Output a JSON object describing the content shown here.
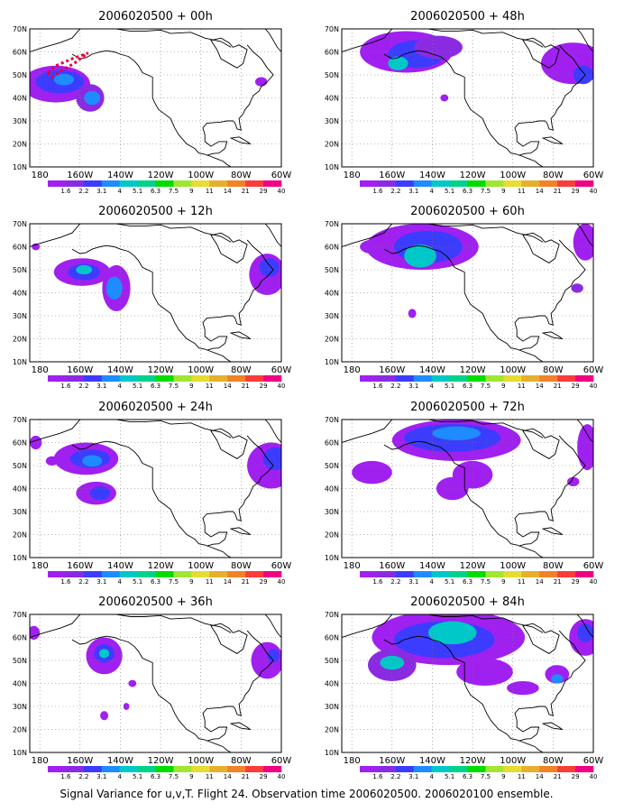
{
  "caption": "Signal Variance for u,v,T. Flight 24. Observation time 2006020500. 2006020100 ensemble.",
  "colorbar": {
    "colors": [
      "#a020f0",
      "#8a2be2",
      "#3c3cff",
      "#1e8cff",
      "#00c8c8",
      "#00d28c",
      "#00dc00",
      "#a0e632",
      "#e6dc32",
      "#e6af2d",
      "#f08228",
      "#fa3c3c",
      "#f00082"
    ],
    "labels": [
      "1.6",
      "2.2",
      "3.1",
      "4",
      "5.1",
      "6.3",
      "7.5",
      "9",
      "11",
      "14",
      "21",
      "29",
      "40"
    ]
  },
  "axes": {
    "xticks": [
      "180",
      "160W",
      "140W",
      "120W",
      "100W",
      "80W",
      "60W"
    ],
    "yticks": [
      "10N",
      "20N",
      "30N",
      "40N",
      "50N",
      "60N",
      "70N"
    ],
    "xlim": [
      175,
      300
    ],
    "ylim": [
      10,
      70
    ],
    "grid": true,
    "grid_style": "dotted"
  },
  "chart_data": [
    {
      "type": "heatmap",
      "title": "2006020500 + 00h"
    },
    {
      "type": "heatmap",
      "title": "2006020500 + 48h"
    },
    {
      "type": "heatmap",
      "title": "2006020500 + 12h"
    },
    {
      "type": "heatmap",
      "title": "2006020500 + 60h"
    },
    {
      "type": "heatmap",
      "title": "2006020500 + 24h"
    },
    {
      "type": "heatmap",
      "title": "2006020500 + 72h"
    },
    {
      "type": "heatmap",
      "title": "2006020500 + 36h"
    },
    {
      "type": "heatmap",
      "title": "2006020500 + 84h"
    }
  ]
}
